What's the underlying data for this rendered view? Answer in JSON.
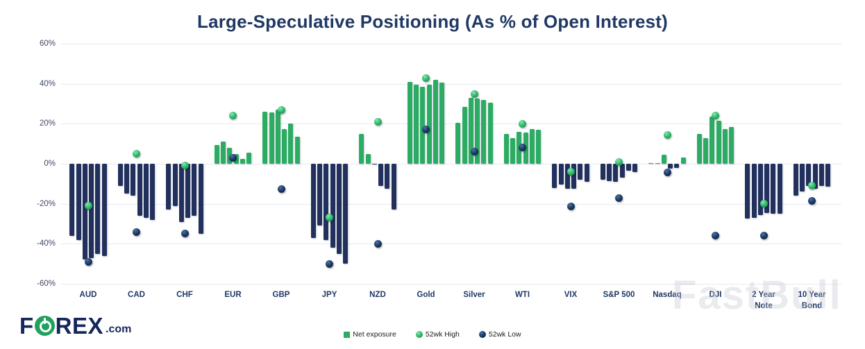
{
  "page": {
    "title": "Large-Speculative Positioning (As % of Open Interest)",
    "watermark": "FastBull"
  },
  "logo": {
    "f": "F",
    "rex": "REX",
    "dotcom": ".com"
  },
  "legend": {
    "items": [
      {
        "label": "Net exposure",
        "marker": "square",
        "color": "#2BAC62"
      },
      {
        "label": "52wk High",
        "marker": "circle",
        "color": "#28B364"
      },
      {
        "label": "52wk Low",
        "marker": "circle",
        "color": "#17325E"
      }
    ]
  },
  "colors": {
    "positive_bar": "#2BAC62",
    "negative_bar": "#22305E",
    "high_dot": "#28B364",
    "low_dot": "#17325E",
    "title_text": "#1F3864",
    "gridline": "#E4E9F0"
  },
  "chart_data": {
    "type": "bar",
    "title": "Large-Speculative Positioning (As % of Open Interest)",
    "ylim": [
      -60,
      60
    ],
    "y_ticks": [
      "60%",
      "40%",
      "20%",
      "0%",
      "-20%",
      "-40%",
      "-60%"
    ],
    "grid": true,
    "legend_position": "bottom",
    "categories": [
      "AUD",
      "CAD",
      "CHF",
      "EUR",
      "GBP",
      "JPY",
      "NZD",
      "Gold",
      "Silver",
      "WTI",
      "VIX",
      "S&P 500",
      "Nasdaq",
      "DJI",
      "2 Year Note",
      "10 Year Bond"
    ],
    "groups": [
      {
        "name": "AUD",
        "label": "AUD",
        "bars": [
          -36,
          -38,
          -48,
          -47,
          -45,
          -46
        ],
        "high": -21,
        "low": -49
      },
      {
        "name": "CAD",
        "label": "CAD",
        "bars": [
          -11,
          -15,
          -16,
          -26,
          -27,
          -28
        ],
        "high": 5,
        "low": -34
      },
      {
        "name": "CHF",
        "label": "CHF",
        "bars": [
          -23,
          -21,
          -29,
          -27,
          -26,
          -35
        ],
        "high": -1,
        "low": -35
      },
      {
        "name": "EUR",
        "label": "EUR",
        "bars": [
          9.5,
          11,
          8,
          5,
          2.5,
          5.5
        ],
        "high": 24,
        "low": 3
      },
      {
        "name": "GBP",
        "label": "GBP",
        "bars": [
          26,
          25.5,
          27,
          17.5,
          20,
          13.5
        ],
        "high": 27,
        "low": -12.5
      },
      {
        "name": "JPY",
        "label": "JPY",
        "bars": [
          -37,
          -31,
          -38,
          -42,
          -45,
          -50
        ],
        "high": -27,
        "low": -50
      },
      {
        "name": "NZD",
        "label": "NZD",
        "bars": [
          15,
          5,
          -0.5,
          -11,
          -12.5,
          -23
        ],
        "high": 21,
        "low": -40
      },
      {
        "name": "Gold",
        "label": "Gold",
        "bars": [
          41,
          39.5,
          38.5,
          39.5,
          42,
          40.5
        ],
        "high": 43,
        "low": 17
      },
      {
        "name": "Silver",
        "label": "Silver",
        "bars": [
          20.5,
          28.5,
          33,
          32.5,
          32,
          30.5
        ],
        "high": 35,
        "low": 6
      },
      {
        "name": "WTI",
        "label": "WTI",
        "bars": [
          15,
          13,
          16,
          15.5,
          17.5,
          17
        ],
        "high": 20,
        "low": 8
      },
      {
        "name": "VIX",
        "label": "VIX",
        "bars": [
          -12,
          -10.5,
          -12.5,
          -12.5,
          -8,
          -9
        ],
        "high": -4,
        "low": -21.5
      },
      {
        "name": "S&P 500",
        "label": "S&P 500",
        "bars": [
          -8,
          -8.5,
          -9,
          -7,
          -3.5,
          -4
        ],
        "high": 1,
        "low": -17
      },
      {
        "name": "Nasdaq",
        "label": "Nasdaq",
        "bars": [
          0.4,
          0.4,
          4.6,
          -2.6,
          -2,
          3.2
        ],
        "high": 14.5,
        "low": -4.5
      },
      {
        "name": "DJI",
        "label": "DJI",
        "bars": [
          15,
          13,
          23.5,
          21.5,
          17.5,
          18.5
        ],
        "high": 24,
        "low": -36
      },
      {
        "name": "2 Year Note",
        "label": "2 Year\nNote",
        "bars": [
          -27.5,
          -27,
          -25.5,
          -24.5,
          -25,
          -24.8
        ],
        "high": -20,
        "low": -36
      },
      {
        "name": "10 Year Bond",
        "label": "10 Year\nBond",
        "bars": [
          -16,
          -14,
          -11,
          -12.5,
          -11,
          -11.5
        ],
        "high": -11,
        "low": -18.5
      }
    ]
  }
}
